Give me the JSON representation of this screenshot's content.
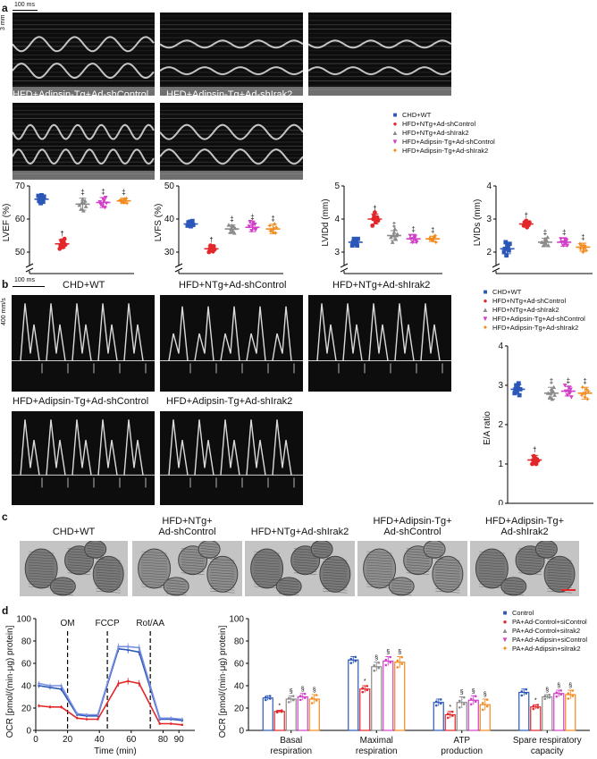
{
  "panels": {
    "a": "a",
    "b": "b",
    "c": "c",
    "d": "d"
  },
  "colors": {
    "g1": "#2b57b8",
    "g2": "#e3262a",
    "g3": "#8a8a8a",
    "g4": "#d23fc8",
    "g5": "#f28a1e"
  },
  "panel_a": {
    "scale_time": "100 ms",
    "scale_depth": "3 mm",
    "images": [
      "CHD+WT",
      "HFD+NTg+Ad-shControl",
      "HFD+NTg+Ad-shIrak2",
      "HFD+Adipsin-Tg+Ad-shControl",
      "HFD+Adipsin-Tg+Ad-shIrak2"
    ],
    "legend": [
      "CHD+WT",
      "HFD+NTg+Ad-shControl",
      "HFD+NTg+Ad-shIrak2",
      "HFD+Adipsin-Tg+Ad-shControl",
      "HFD+Adipsin-Tg+Ad-shIrak2"
    ]
  },
  "panel_b": {
    "scale_time": "100 ms",
    "scale_velocity": "400 mm/s",
    "images": [
      "CHD+WT",
      "HFD+NTg+Ad-shControl",
      "HFD+NTg+Ad-shIrak2",
      "HFD+Adipsin-Tg+Ad-shControl",
      "HFD+Adipsin-Tg+Ad-shIrak2"
    ],
    "legend": [
      "CHD+WT",
      "HFD+NTg+Ad-shControl",
      "HFD+NTg+Ad-shIrak2",
      "HFD+Adipsin-Tg+Ad-shControl",
      "HFD+Adipsin-Tg+Ad-shIrak2"
    ]
  },
  "panel_c": {
    "labels": [
      [
        "CHD+WT"
      ],
      [
        "HFD+NTg+",
        "Ad-shControl"
      ],
      [
        "HFD+NTg+Ad-shIrak2"
      ],
      [
        "HFD+Adipsin-Tg+",
        "Ad-shControl"
      ],
      [
        "HFD+Adipsin-Tg+",
        "Ad-shIrak2"
      ]
    ]
  },
  "panel_d": {
    "legend": [
      "Control",
      "PA+Ad-Control+siControl",
      "PA+Ad-Control+siIrak2",
      "PA+Ad-Adipsin+siControl",
      "PA+Ad-Adipsin+siIrak2"
    ]
  },
  "chart_data": [
    {
      "type": "scatter",
      "ylabel": "LVEF (%)",
      "ylim": [
        50,
        70
      ],
      "yticks": [
        50,
        60,
        70
      ],
      "broken_axis": true,
      "groups": [
        "CHD+WT",
        "HFD+NTg+Ad-shControl",
        "HFD+NTg+Ad-shIrak2",
        "HFD+Adipsin-Tg+Ad-shControl",
        "HFD+Adipsin-Tg+Ad-shIrak2"
      ],
      "means": [
        66,
        52.5,
        64.5,
        65,
        65.5
      ],
      "sd": [
        1.2,
        1.3,
        1.8,
        1.5,
        0.8
      ],
      "points": [
        [
          67,
          65.5,
          66.5,
          64.8,
          67.2,
          66,
          65.2,
          66.8
        ],
        [
          51,
          52,
          53.5,
          52.8,
          51.5,
          53,
          54,
          52.2
        ],
        [
          63,
          65,
          66,
          62.5,
          64.8,
          65.5,
          63.8,
          64.2
        ],
        [
          64,
          66,
          65.5,
          63.5,
          66.5,
          64.8,
          65.2,
          64.4
        ],
        [
          65,
          66,
          65.5,
          66.2,
          64.8,
          65.8,
          65.2,
          65.6
        ]
      ],
      "annotations": [
        "",
        "†",
        "‡",
        "‡",
        "‡"
      ]
    },
    {
      "type": "scatter",
      "ylabel": "LVFS (%)",
      "ylim": [
        30,
        50
      ],
      "yticks": [
        30,
        40,
        50
      ],
      "broken_axis": true,
      "groups": [
        "CHD+WT",
        "HFD+NTg+Ad-shControl",
        "HFD+NTg+Ad-shIrak2",
        "HFD+Adipsin-Tg+Ad-shControl",
        "HFD+Adipsin-Tg+Ad-shIrak2"
      ],
      "means": [
        38.5,
        31,
        37,
        37.5,
        37
      ],
      "sd": [
        0.8,
        0.9,
        1.2,
        1.3,
        1.4
      ],
      "points": [
        [
          38,
          39,
          38.5,
          39.2,
          37.8,
          38.6,
          39.4,
          38.2
        ],
        [
          30,
          31,
          32,
          30.5,
          31.5,
          30.2,
          31.8,
          30.8
        ],
        [
          36,
          37,
          38,
          36.5,
          37.8,
          35.8,
          37.2,
          38.2
        ],
        [
          36.5,
          38,
          39,
          37.2,
          38.4,
          36.8,
          37.8,
          39.2
        ],
        [
          36,
          37,
          38.5,
          35.8,
          37.5,
          38,
          36.4,
          36.8
        ]
      ],
      "annotations": [
        "",
        "†",
        "‡",
        "‡",
        "‡"
      ]
    },
    {
      "type": "scatter",
      "ylabel": "LVIDd (mm)",
      "ylim": [
        3,
        5
      ],
      "yticks": [
        3,
        4,
        5
      ],
      "broken_axis": true,
      "groups": [
        "CHD+WT",
        "HFD+NTg+Ad-shControl",
        "HFD+NTg+Ad-shIrak2",
        "HFD+Adipsin-Tg+Ad-shControl",
        "HFD+Adipsin-Tg+Ad-shIrak2"
      ],
      "means": [
        3.3,
        4.0,
        3.5,
        3.4,
        3.4
      ],
      "sd": [
        0.1,
        0.15,
        0.15,
        0.12,
        0.08
      ],
      "points": [
        [
          3.2,
          3.3,
          3.4,
          3.25,
          3.35,
          3.3,
          3.2,
          3.4
        ],
        [
          3.8,
          4.0,
          4.1,
          4.2,
          3.9,
          4.0,
          4.05,
          3.95
        ],
        [
          3.3,
          3.5,
          3.6,
          3.7,
          3.4,
          3.5,
          3.55,
          3.45
        ],
        [
          3.3,
          3.4,
          3.5,
          3.45,
          3.35,
          3.3,
          3.5,
          3.4
        ],
        [
          3.35,
          3.4,
          3.45,
          3.5,
          3.3,
          3.4,
          3.42,
          3.38
        ]
      ],
      "annotations": [
        "",
        "†",
        "‡",
        "‡",
        "‡"
      ]
    },
    {
      "type": "scatter",
      "ylabel": "LVIDs (mm)",
      "ylim": [
        2,
        4
      ],
      "yticks": [
        2,
        3,
        4
      ],
      "broken_axis": true,
      "groups": [
        "CHD+WT",
        "HFD+NTg+Ad-shControl",
        "HFD+NTg+Ad-shIrak2",
        "HFD+Adipsin-Tg+Ad-shControl",
        "HFD+Adipsin-Tg+Ad-shIrak2"
      ],
      "means": [
        2.1,
        2.85,
        2.3,
        2.3,
        2.15
      ],
      "sd": [
        0.15,
        0.08,
        0.12,
        0.12,
        0.12
      ],
      "points": [
        [
          2.0,
          2.1,
          2.3,
          1.9,
          2.2,
          2.15,
          2.05,
          2.25
        ],
        [
          2.8,
          2.9,
          2.85,
          2.95,
          2.75,
          2.88,
          2.82,
          2.9
        ],
        [
          2.2,
          2.3,
          2.4,
          2.25,
          2.35,
          2.45,
          2.2,
          2.3
        ],
        [
          2.2,
          2.3,
          2.4,
          2.25,
          2.35,
          2.2,
          2.4,
          2.3
        ],
        [
          2.0,
          2.1,
          2.2,
          2.15,
          2.05,
          2.25,
          2.1,
          2.2
        ]
      ],
      "annotations": [
        "",
        "†",
        "‡",
        "‡",
        "‡"
      ]
    },
    {
      "type": "scatter",
      "ylabel": "E/A ratio",
      "ylim": [
        0,
        4
      ],
      "yticks": [
        0,
        1,
        2,
        3,
        4
      ],
      "groups": [
        "CHD+WT",
        "HFD+NTg+Ad-shControl",
        "HFD+NTg+Ad-shIrak2",
        "HFD+Adipsin-Tg+Ad-shControl",
        "HFD+Adipsin-Tg+Ad-shIrak2"
      ],
      "means": [
        2.9,
        1.1,
        2.8,
        2.85,
        2.8
      ],
      "sd": [
        0.12,
        0.12,
        0.15,
        0.12,
        0.15
      ],
      "points": [
        [
          2.8,
          2.9,
          3.0,
          2.85,
          2.95,
          3.05,
          2.75,
          2.9
        ],
        [
          1.0,
          1.1,
          1.2,
          1.05,
          1.15,
          1.0,
          1.12,
          1.08
        ],
        [
          2.7,
          2.8,
          2.9,
          2.65,
          2.85,
          2.95,
          2.75,
          2.8
        ],
        [
          2.75,
          2.85,
          2.95,
          2.8,
          2.9,
          2.7,
          3.0,
          2.85
        ],
        [
          2.7,
          2.8,
          2.9,
          2.65,
          2.85,
          2.75,
          2.95,
          2.8
        ]
      ],
      "annotations": [
        "",
        "†",
        "‡",
        "‡",
        "‡"
      ]
    },
    {
      "type": "line",
      "xlabel": "Time (min)",
      "ylabel": "OCR [pmol/(min·μg) protein]",
      "xlim": [
        0,
        100
      ],
      "ylim": [
        0,
        100
      ],
      "xticks": [
        0,
        20,
        40,
        60,
        80
      ],
      "xtick_labels": [
        "0",
        "20",
        "40",
        "60",
        "80"
      ],
      "extra_xtick": 90,
      "yticks": [
        0,
        20,
        40,
        60,
        80,
        100
      ],
      "injections": [
        {
          "x": 20,
          "label": "OM"
        },
        {
          "x": 45,
          "label": "FCCP"
        },
        {
          "x": 72,
          "label": "Rot/AA"
        }
      ],
      "x": [
        2,
        9,
        16,
        26,
        32,
        39,
        52,
        58,
        65,
        78,
        85,
        92
      ],
      "series": [
        {
          "values": [
            40,
            38.5,
            37,
            14,
            13,
            13,
            73,
            72,
            70,
            10,
            10,
            9
          ],
          "err": [
            2,
            2,
            2,
            1.5,
            1.5,
            1.5,
            3,
            3,
            3,
            1.5,
            1.5,
            1.5
          ]
        },
        {
          "values": [
            42,
            40,
            40,
            15,
            14,
            14,
            75,
            75,
            74,
            11,
            11,
            10
          ],
          "err": [
            2,
            2,
            2,
            1.5,
            1.5,
            1.5,
            3,
            3,
            3,
            1.5,
            1.5,
            1.5
          ]
        },
        {
          "values": [
            22,
            21,
            21,
            11,
            10,
            10,
            42,
            44,
            42,
            6,
            6,
            5
          ],
          "err": [
            1.5,
            1.5,
            1.5,
            1,
            1,
            1,
            3,
            3,
            3,
            1,
            1,
            1
          ]
        }
      ]
    },
    {
      "type": "bar",
      "ylabel": "OCR [pmol/(min·μg) protein]",
      "ylim": [
        0,
        100
      ],
      "yticks": [
        0,
        20,
        40,
        60,
        80,
        100
      ],
      "categories": [
        [
          "Basal",
          "respiration"
        ],
        [
          "Maximal",
          "respiration"
        ],
        [
          "ATP",
          "production"
        ],
        [
          "Spare respiratory",
          "capacity"
        ]
      ],
      "series": [
        {
          "name": "Control",
          "values": [
            29,
            63,
            25,
            34
          ],
          "err": [
            2,
            3,
            3,
            3
          ]
        },
        {
          "name": "PA+Ad-Control+siControl",
          "values": [
            17,
            37,
            14,
            21
          ],
          "err": [
            1,
            3,
            3,
            2
          ]
        },
        {
          "name": "PA+Ad-Control+siIrak2",
          "values": [
            28,
            57,
            25,
            30
          ],
          "err": [
            3,
            4,
            5,
            2
          ]
        },
        {
          "name": "PA+Ad-Adipsin+siControl",
          "values": [
            30,
            62,
            27,
            33
          ],
          "err": [
            3,
            4,
            4,
            3
          ]
        },
        {
          "name": "PA+Ad-Adipsin+siIrak2",
          "values": [
            28,
            61,
            23,
            32
          ],
          "err": [
            4,
            5,
            5,
            4
          ]
        }
      ],
      "annotations": [
        "",
        "*",
        "§",
        "§",
        "§"
      ]
    }
  ]
}
